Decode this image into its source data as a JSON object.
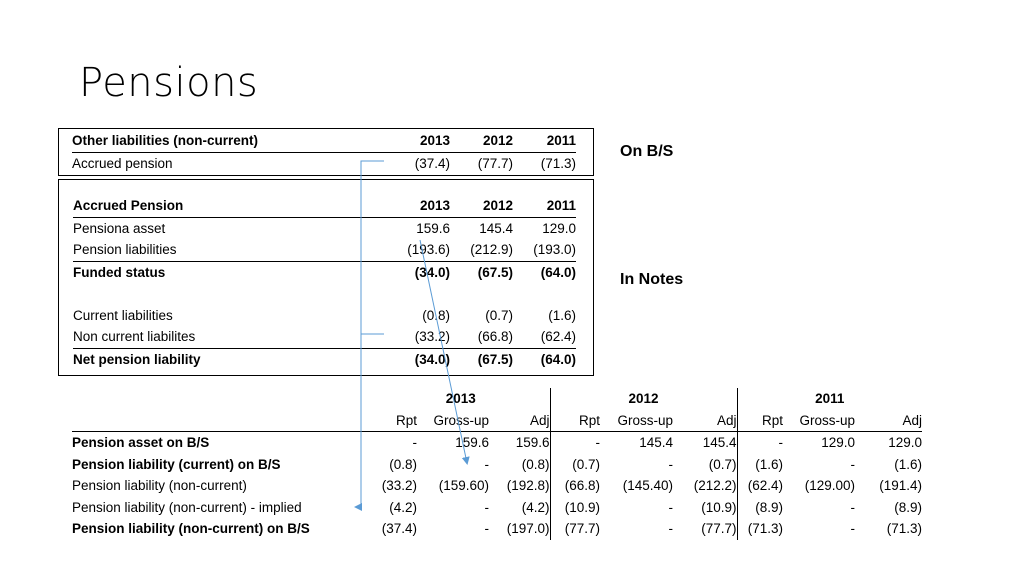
{
  "slide": {
    "title": "Pensions"
  },
  "labels": {
    "on_bs": "On B/S",
    "in_notes": "In Notes"
  },
  "bs_table": {
    "header": {
      "label": "Other liabilities (non-current)",
      "years": [
        "2013",
        "2012",
        "2011"
      ]
    },
    "rows": [
      {
        "label": "Accrued pension",
        "values": [
          "(37.4)",
          "(77.7)",
          "(71.3)"
        ]
      }
    ]
  },
  "notes_table": {
    "header": {
      "label": "Accrued Pension",
      "years": [
        "2013",
        "2012",
        "2011"
      ]
    },
    "rows": [
      {
        "label": "Pensiona asset",
        "values": [
          "159.6",
          "145.4",
          "129.0"
        ]
      },
      {
        "label": "Pension liabilities",
        "values": [
          "(193.6)",
          "(212.9)",
          "(193.0)"
        ]
      },
      {
        "label": "Funded status",
        "values": [
          "(34.0)",
          "(67.5)",
          "(64.0)"
        ]
      },
      {
        "label": "Current liabilities",
        "values": [
          "(0.8)",
          "(0.7)",
          "(1.6)"
        ]
      },
      {
        "label": "Non current liabilites",
        "values": [
          "(33.2)",
          "(66.8)",
          "(62.4)"
        ]
      },
      {
        "label": "Net pension liability",
        "values": [
          "(34.0)",
          "(67.5)",
          "(64.0)"
        ]
      }
    ]
  },
  "recon_table": {
    "years": [
      "2013",
      "2012",
      "2011"
    ],
    "subheaders": [
      "Rpt",
      "Gross-up",
      "Adj"
    ],
    "rows": [
      {
        "label": "Pension asset on B/S",
        "values": [
          "-",
          "159.6",
          "159.6",
          "-",
          "145.4",
          "145.4",
          "-",
          "129.0",
          "129.0"
        ]
      },
      {
        "label": "Pension liability (current) on B/S",
        "values": [
          "(0.8)",
          "-",
          "(0.8)",
          "(0.7)",
          "-",
          "(0.7)",
          "(1.6)",
          "-",
          "(1.6)"
        ]
      },
      {
        "label": "Pension liability (non-current)",
        "values": [
          "(33.2)",
          "(159.60)",
          "(192.8)",
          "(66.8)",
          "(145.40)",
          "(212.2)",
          "(62.4)",
          "(129.00)",
          "(191.4)"
        ]
      },
      {
        "label": "Pension liability (non-current) - implied",
        "values": [
          "(4.2)",
          "-",
          "(4.2)",
          "(10.9)",
          "-",
          "(10.9)",
          "(8.9)",
          "-",
          "(8.9)"
        ]
      },
      {
        "label": "Pension liability (non-current) on B/S",
        "values": [
          "(37.4)",
          "-",
          "(197.0)",
          "(77.7)",
          "-",
          "(77.7)",
          "(71.3)",
          "-",
          "(71.3)"
        ]
      }
    ]
  },
  "colors": {
    "arrow": "#5b9bd5"
  }
}
